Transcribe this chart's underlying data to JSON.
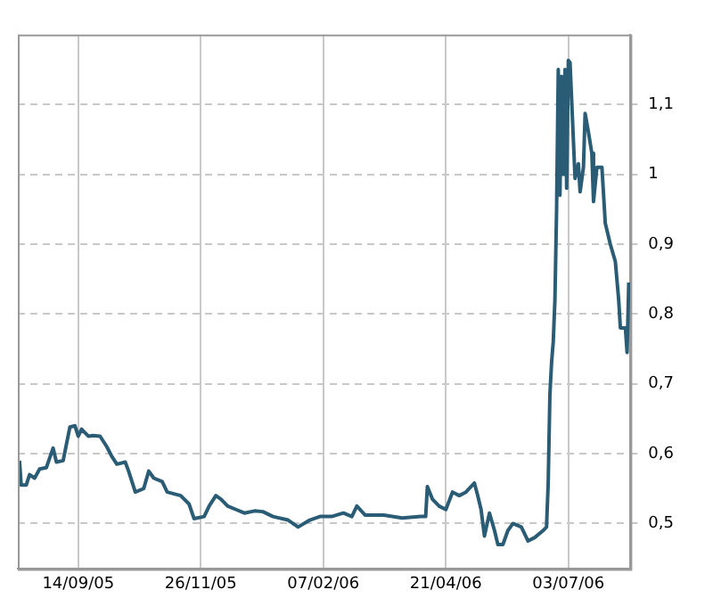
{
  "chart_data": {
    "type": "line",
    "x": [
      "2005-08-10",
      "2005-08-11",
      "2005-08-14",
      "2005-08-16",
      "2005-08-19",
      "2005-08-22",
      "2005-08-26",
      "2005-08-30",
      "2005-09-01",
      "2005-09-05",
      "2005-09-09",
      "2005-09-12",
      "2005-09-14",
      "2005-09-16",
      "2005-09-20",
      "2005-09-23",
      "2005-09-27",
      "2005-10-01",
      "2005-10-04",
      "2005-10-07",
      "2005-10-12",
      "2005-10-14",
      "2005-10-18",
      "2005-10-23",
      "2005-10-26",
      "2005-10-29",
      "2005-11-03",
      "2005-11-06",
      "2005-11-14",
      "2005-11-19",
      "2005-11-22",
      "2005-11-28",
      "2005-12-01",
      "2005-12-05",
      "2005-12-08",
      "2005-12-12",
      "2005-12-17",
      "2005-12-22",
      "2005-12-28",
      "2006-01-02",
      "2006-01-08",
      "2006-01-17",
      "2006-01-23",
      "2006-01-30",
      "2006-02-05",
      "2006-02-12",
      "2006-02-19",
      "2006-02-24",
      "2006-02-27",
      "2006-03-04",
      "2006-03-15",
      "2006-03-26",
      "2006-04-06",
      "2006-04-09",
      "2006-04-10",
      "2006-04-13",
      "2006-04-17",
      "2006-04-21",
      "2006-04-25",
      "2006-04-29",
      "2006-05-03",
      "2006-05-08",
      "2006-05-10",
      "2006-05-12",
      "2006-05-14",
      "2006-05-17",
      "2006-05-20",
      "2006-05-22",
      "2006-05-25",
      "2006-05-28",
      "2006-05-31",
      "2006-06-05",
      "2006-06-09",
      "2006-06-13",
      "2006-06-18",
      "2006-06-20",
      "2006-06-21",
      "2006-06-22",
      "2006-06-23",
      "2006-06-24",
      "2006-06-25",
      "2006-06-26",
      "2006-06-27",
      "2006-06-28",
      "2006-06-29",
      "2006-06-30",
      "2006-07-01",
      "2006-07-02",
      "2006-07-03",
      "2006-07-04",
      "2006-07-06",
      "2006-07-07",
      "2006-07-09",
      "2006-07-10",
      "2006-07-12",
      "2006-07-13",
      "2006-07-15",
      "2006-07-17",
      "2006-07-18",
      "2006-07-20",
      "2006-07-23",
      "2006-07-25",
      "2006-07-28",
      "2006-07-31",
      "2006-08-02",
      "2006-08-03",
      "2006-08-06",
      "2006-08-07",
      "2006-08-08"
    ],
    "series": [
      {
        "color": "#2a5d75",
        "values": [
          0.59,
          0.555,
          0.555,
          0.57,
          0.565,
          0.578,
          0.58,
          0.608,
          0.588,
          0.59,
          0.638,
          0.64,
          0.625,
          0.635,
          0.625,
          0.626,
          0.625,
          0.61,
          0.596,
          0.585,
          0.588,
          0.575,
          0.545,
          0.55,
          0.575,
          0.565,
          0.56,
          0.545,
          0.54,
          0.528,
          0.507,
          0.51,
          0.525,
          0.54,
          0.535,
          0.525,
          0.52,
          0.515,
          0.518,
          0.517,
          0.51,
          0.505,
          0.495,
          0.505,
          0.51,
          0.51,
          0.515,
          0.51,
          0.525,
          0.512,
          0.512,
          0.508,
          0.51,
          0.51,
          0.553,
          0.535,
          0.525,
          0.52,
          0.545,
          0.54,
          0.545,
          0.558,
          0.54,
          0.52,
          0.482,
          0.515,
          0.49,
          0.47,
          0.47,
          0.49,
          0.5,
          0.495,
          0.475,
          0.48,
          0.49,
          0.495,
          0.558,
          0.684,
          0.73,
          0.76,
          0.82,
          0.95,
          1.15,
          0.97,
          1.14,
          1.0,
          1.15,
          0.98,
          1.163,
          1.16,
          1.049,
          0.994,
          1.015,
          0.975,
          1.01,
          1.087,
          1.06,
          1.03,
          0.961,
          1.01,
          1.01,
          0.93,
          0.9,
          0.875,
          0.82,
          0.78,
          0.78,
          0.745,
          0.845
        ]
      }
    ],
    "xlim": [
      "2005-08-09",
      "2006-08-09"
    ],
    "xticks": [
      {
        "value": "2005-09-14",
        "label": "14/09/05"
      },
      {
        "value": "2005-11-26",
        "label": "26/11/05"
      },
      {
        "value": "2006-02-07",
        "label": "07/02/06"
      },
      {
        "value": "2006-04-21",
        "label": "21/04/06"
      },
      {
        "value": "2006-07-03",
        "label": "03/07/06"
      }
    ],
    "ylim": [
      0.435,
      1.2
    ],
    "yticks": [
      {
        "value": 0.5,
        "label": "0,5"
      },
      {
        "value": 0.6,
        "label": "0,6"
      },
      {
        "value": 0.7,
        "label": "0,7"
      },
      {
        "value": 0.8,
        "label": "0,8"
      },
      {
        "value": 0.9,
        "label": "0,9"
      },
      {
        "value": 1,
        "label": "1"
      },
      {
        "value": 1.1,
        "label": "1,1"
      }
    ],
    "grid": true,
    "legend": false
  }
}
